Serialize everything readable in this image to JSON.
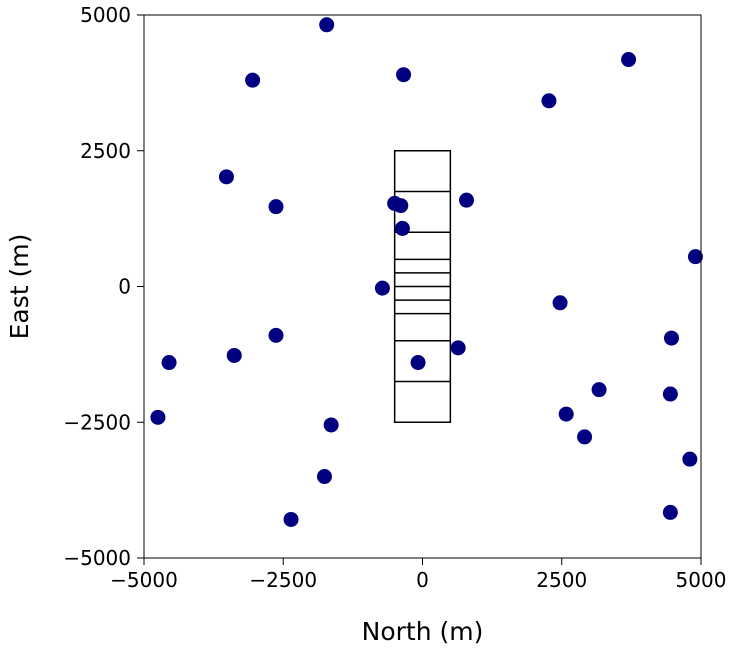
{
  "chart_data": {
    "type": "scatter",
    "title": "",
    "xlabel": "North (m)",
    "ylabel": "East (m)",
    "xlim": [
      -5000,
      5000
    ],
    "ylim": [
      -5000,
      5000
    ],
    "xticks": [
      -5000,
      -2500,
      0,
      2500,
      5000
    ],
    "yticks": [
      -5000,
      -2500,
      0,
      2500,
      5000
    ],
    "xtick_labels": [
      "−5000",
      "−2500",
      "0",
      "2500",
      "5000"
    ],
    "ytick_labels": [
      "−5000",
      "−2500",
      "0",
      "2500",
      "5000"
    ],
    "grid": false,
    "marker_color": "#000080",
    "series": [
      {
        "points": [
          [
            -1720,
            4820
          ],
          [
            -3050,
            3800
          ],
          [
            -340,
            3900
          ],
          [
            3700,
            4180
          ],
          [
            2270,
            3420
          ],
          [
            -3520,
            2020
          ],
          [
            -2630,
            1470
          ],
          [
            -500,
            1530
          ],
          [
            -390,
            1490
          ],
          [
            -360,
            1070
          ],
          [
            790,
            1590
          ],
          [
            4900,
            550
          ],
          [
            -720,
            -30
          ],
          [
            2470,
            -300
          ],
          [
            4470,
            -950
          ],
          [
            -2630,
            -900
          ],
          [
            -3380,
            -1270
          ],
          [
            -4550,
            -1400
          ],
          [
            640,
            -1130
          ],
          [
            -80,
            -1400
          ],
          [
            3170,
            -1900
          ],
          [
            4450,
            -1980
          ],
          [
            -4750,
            -2410
          ],
          [
            -1640,
            -2550
          ],
          [
            2580,
            -2350
          ],
          [
            2910,
            -2770
          ],
          [
            4800,
            -3180
          ],
          [
            -1760,
            -3500
          ],
          [
            -2360,
            -4290
          ],
          [
            4450,
            -4160
          ]
        ]
      }
    ],
    "array": {
      "x_range": [
        -500,
        500
      ],
      "y_range": [
        -2500,
        2500
      ],
      "row_boundaries": [
        -2500,
        -1750,
        -1000,
        -500,
        -250,
        0,
        250,
        500,
        1000,
        1750,
        2500
      ]
    }
  }
}
